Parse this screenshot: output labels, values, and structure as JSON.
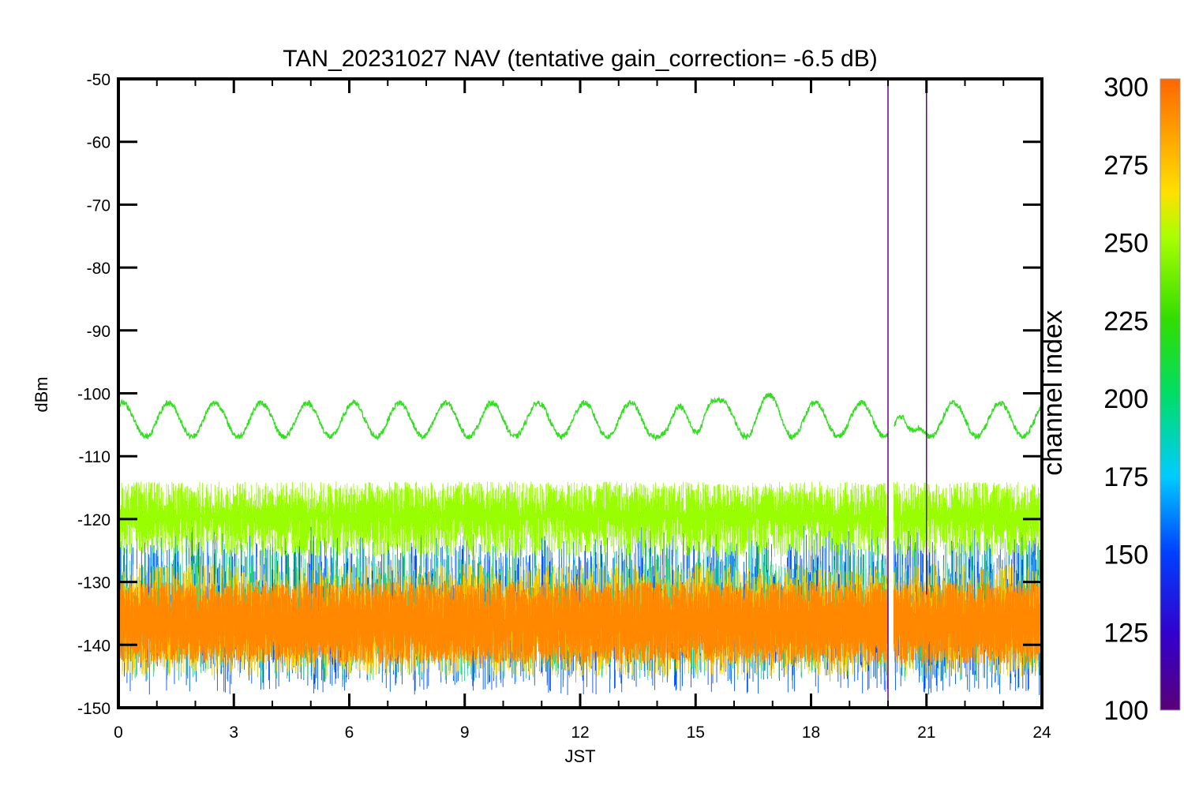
{
  "chart_data": {
    "type": "line",
    "title": "TAN_20231027 NAV (tentative gain_correction= -6.5 dB)",
    "xlabel": "JST",
    "ylabel": "dBm",
    "xlim": [
      0,
      24
    ],
    "ylim": [
      -150,
      -50
    ],
    "x_ticks": [
      0,
      3,
      6,
      9,
      12,
      15,
      18,
      21,
      24
    ],
    "y_ticks": [
      -50,
      -60,
      -70,
      -80,
      -90,
      -100,
      -110,
      -120,
      -130,
      -140,
      -150
    ],
    "colorbar": {
      "label": "channel index",
      "range": [
        100,
        300
      ],
      "ticks": [
        300,
        275,
        250,
        225,
        200,
        175,
        150,
        125,
        100
      ],
      "colormap": "rainbow (purple-blue-cyan-green-yellow-orange)"
    },
    "series": [
      {
        "channel_index_approx": 240,
        "color": "#33dd22",
        "description_values": "oscillating signal, mean about -104 dBm, amplitude about 2.5 dBm, period about 1.2 h",
        "mean": -104.2,
        "amplitude": 2.7,
        "period_hours": 1.2,
        "notable_values": [
          {
            "x": 14.2,
            "y": -107.5
          },
          {
            "x": 15.4,
            "y": -99.5
          },
          {
            "x": 16.9,
            "y": -99.5
          },
          {
            "x": 20.6,
            "y": -108.5
          }
        ]
      },
      {
        "channel_index_approx": 258,
        "color": "#99ff00",
        "description_values": "noise band centered about -119.5 dBm, spanning about -126 to -114 dBm",
        "center": -119.5,
        "spread": [
          -126,
          -114
        ]
      },
      {
        "channel_index_approx": 285,
        "color": "#ff8800",
        "description_values": "dense noise band centered about -136.5 dBm, spanning about -143 to -130 dBm",
        "center": -136.5,
        "spread": [
          -143,
          -130
        ]
      },
      {
        "channel_index_approx": 150,
        "color": "#0055ff",
        "description_values": "sparse noise spikes spanning about -148 to -121 dBm",
        "spread": [
          -148,
          -121
        ]
      }
    ],
    "gap": {
      "x_range": [
        20.0,
        20.15
      ]
    },
    "vertical_spikes": [
      {
        "x": 20.0,
        "y_range": [
          -150,
          -50
        ],
        "color": "#6a0080"
      },
      {
        "x": 21.0,
        "y_range": [
          -132,
          -50
        ],
        "color": "#6a0080"
      }
    ],
    "grid": false,
    "legend": "none (colorbar at right)"
  }
}
